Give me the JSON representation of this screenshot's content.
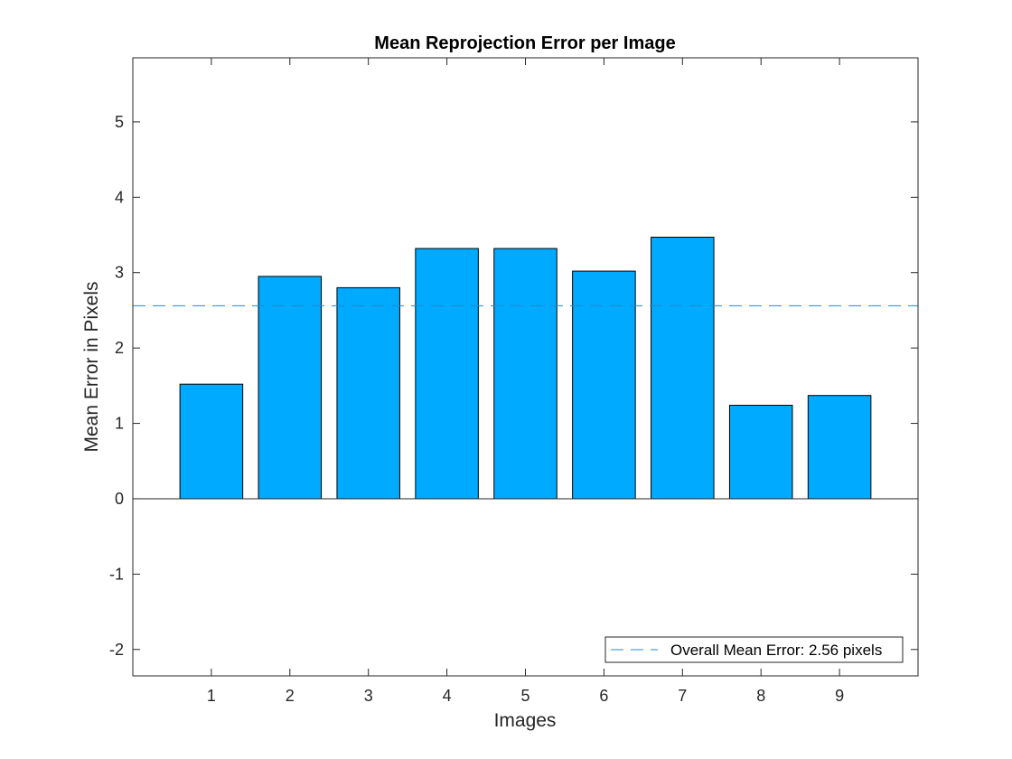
{
  "chart_data": {
    "type": "bar",
    "title": "Mean Reprojection Error per Image",
    "xlabel": "Images",
    "ylabel": "Mean Error in Pixels",
    "categories": [
      "1",
      "2",
      "3",
      "4",
      "5",
      "6",
      "7",
      "8",
      "9"
    ],
    "values": [
      1.52,
      2.95,
      2.8,
      3.32,
      3.32,
      3.02,
      3.47,
      1.24,
      1.37
    ],
    "xlim": [
      0,
      10
    ],
    "ylim": [
      -2.35,
      5.85
    ],
    "yticks": [
      -2,
      -1,
      0,
      1,
      2,
      3,
      4,
      5
    ],
    "ytick_labels": [
      "-2",
      "-1",
      "0",
      "1",
      "2",
      "3",
      "4",
      "5"
    ],
    "grid": false,
    "reference_line": {
      "value": 2.56,
      "style": "dashed"
    },
    "legend": {
      "location": "bottom-right",
      "entries": [
        "Overall Mean Error: 2.56 pixels"
      ]
    },
    "colors": {
      "bar_fill": "#00aaff",
      "bar_edge": "#000000",
      "reference_line": "#1f8ccd",
      "axes": "#262626"
    }
  }
}
